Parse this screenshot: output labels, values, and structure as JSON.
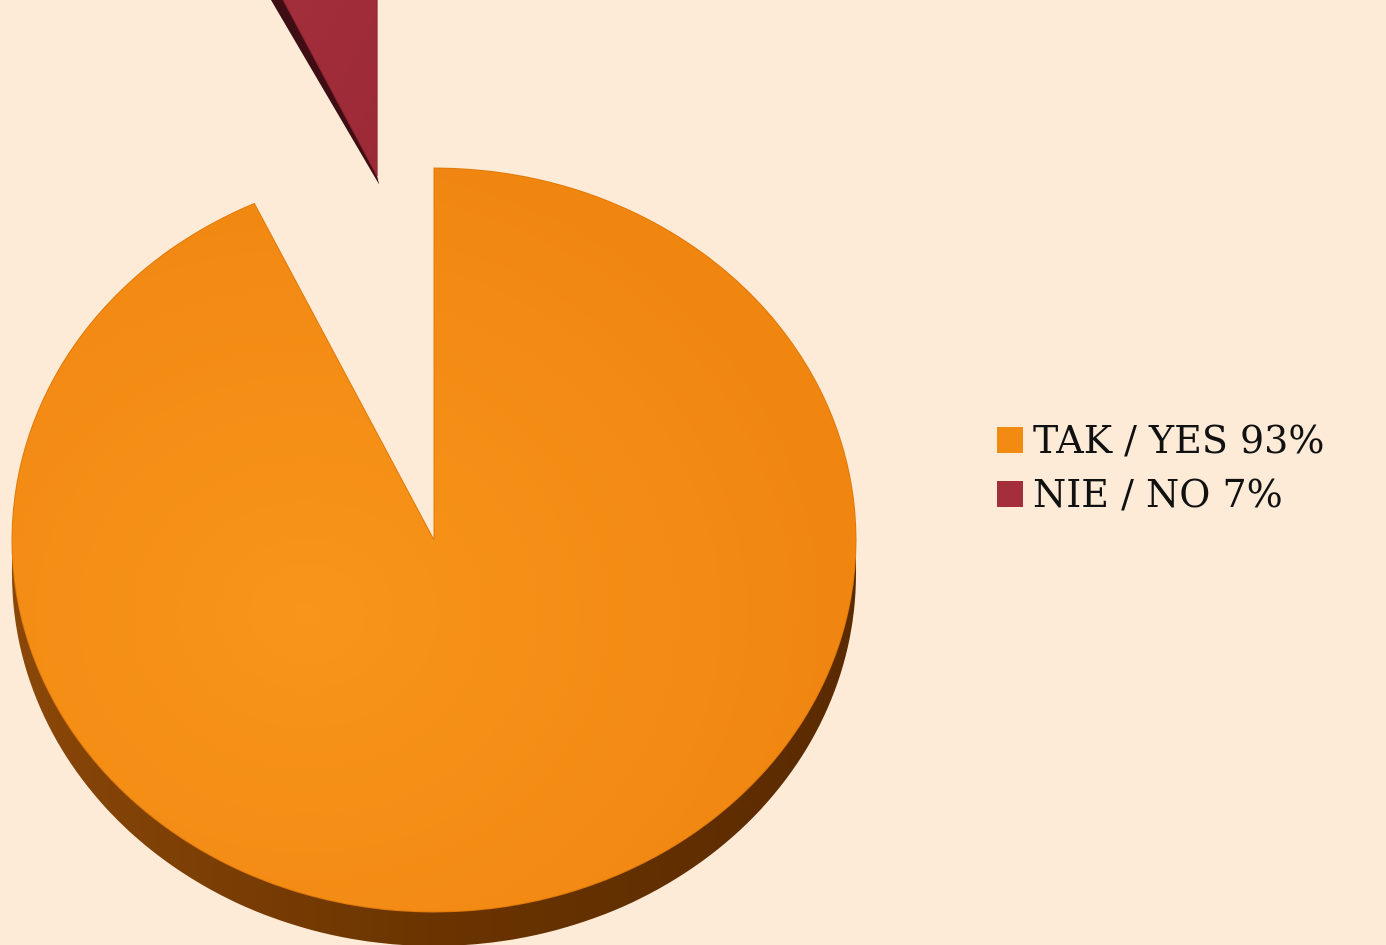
{
  "chart_data": {
    "type": "pie",
    "style": "3d-exploded",
    "title": "",
    "categories": [
      "TAK / YES",
      "NIE / NO"
    ],
    "values": [
      93,
      7
    ],
    "colors": [
      "#F38A12",
      "#A42E3A"
    ],
    "side_colors": [
      "#6A3400",
      "#3E0E14"
    ],
    "exploded": [
      false,
      true
    ],
    "legend": {
      "position": "right",
      "items": [
        {
          "label": "TAK / YES 93%",
          "color": "#F38A12"
        },
        {
          "label": "NIE / NO 7%",
          "color": "#A42E3A"
        }
      ]
    }
  },
  "colors": {
    "background": "#FDEBD8"
  }
}
